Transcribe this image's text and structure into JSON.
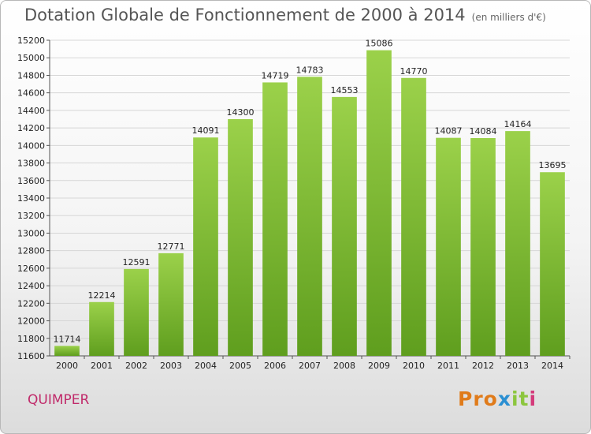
{
  "header": {
    "title": "Dotation Globale de Fonctionnement de 2000 à 2014",
    "unit": "(en milliers d'€)"
  },
  "footer": {
    "city": "QUIMPER",
    "logo": "Proxiti"
  },
  "chart_data": {
    "type": "bar",
    "title": "Dotation Globale de Fonctionnement de 2000 à 2014",
    "subtitle": "(en milliers d'€)",
    "categories": [
      "2000",
      "2001",
      "2002",
      "2003",
      "2004",
      "2005",
      "2006",
      "2007",
      "2008",
      "2009",
      "2010",
      "2011",
      "2012",
      "2013",
      "2014"
    ],
    "values": [
      11714,
      12214,
      12591,
      12771,
      14091,
      14300,
      14719,
      14783,
      14553,
      15086,
      14770,
      14087,
      14084,
      14164,
      13695
    ],
    "ylim": [
      11600,
      15200
    ],
    "yticks": [
      11600,
      11800,
      12000,
      12200,
      12400,
      12600,
      12800,
      13000,
      13200,
      13400,
      13600,
      13800,
      14000,
      14200,
      14400,
      14600,
      14800,
      15000,
      15200
    ],
    "grid": true,
    "bar_color": "#8cc63e",
    "bar_color_dark": "#6aa626"
  }
}
